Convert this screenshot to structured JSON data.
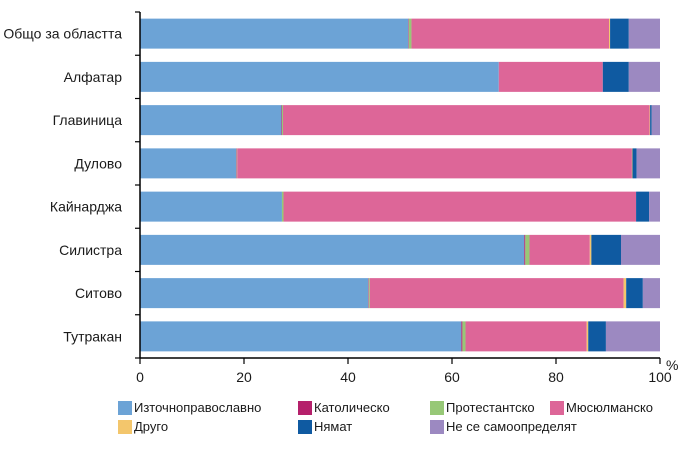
{
  "chart_data": {
    "type": "bar",
    "orientation": "horizontal",
    "stacked": true,
    "categories": [
      "Общо за областта",
      "Алфатар",
      "Главиница",
      "Дулово",
      "Кайнарджа",
      "Силистра",
      "Ситово",
      "Тутракан"
    ],
    "series": [
      {
        "name": "Източноправославно",
        "color": "#6ca3d6",
        "values": [
          51.6,
          69.0,
          27.2,
          18.5,
          27.3,
          73.9,
          43.9,
          61.8
        ]
      },
      {
        "name": "Католическо",
        "color": "#b5206b",
        "values": [
          0.1,
          0.0,
          0.1,
          0.1,
          0.0,
          0.2,
          0.1,
          0.2
        ]
      },
      {
        "name": "Протестантско",
        "color": "#97c877",
        "values": [
          0.5,
          0.0,
          0.2,
          0.1,
          0.3,
          0.8,
          0.2,
          0.6
        ]
      },
      {
        "name": "Мюсюлманско",
        "color": "#dd6698",
        "values": [
          38.0,
          20.0,
          70.5,
          75.9,
          67.8,
          11.6,
          48.8,
          23.3
        ]
      },
      {
        "name": "Друго",
        "color": "#f3c66c",
        "values": [
          0.2,
          0.0,
          0.1,
          0.1,
          0.0,
          0.3,
          0.5,
          0.3
        ]
      },
      {
        "name": "Нямат",
        "color": "#0f5aa1",
        "values": [
          3.6,
          5.0,
          0.3,
          0.8,
          2.5,
          5.7,
          3.2,
          3.4
        ]
      },
      {
        "name": "Не се самоопределят",
        "color": "#9c89c1",
        "values": [
          6.0,
          6.0,
          1.6,
          4.5,
          2.1,
          7.5,
          3.3,
          10.4
        ]
      }
    ],
    "xlim": [
      0,
      100
    ],
    "xticks": [
      0,
      20,
      40,
      60,
      80,
      100
    ],
    "xunit": "%",
    "grid": false,
    "legend_position": "bottom"
  }
}
